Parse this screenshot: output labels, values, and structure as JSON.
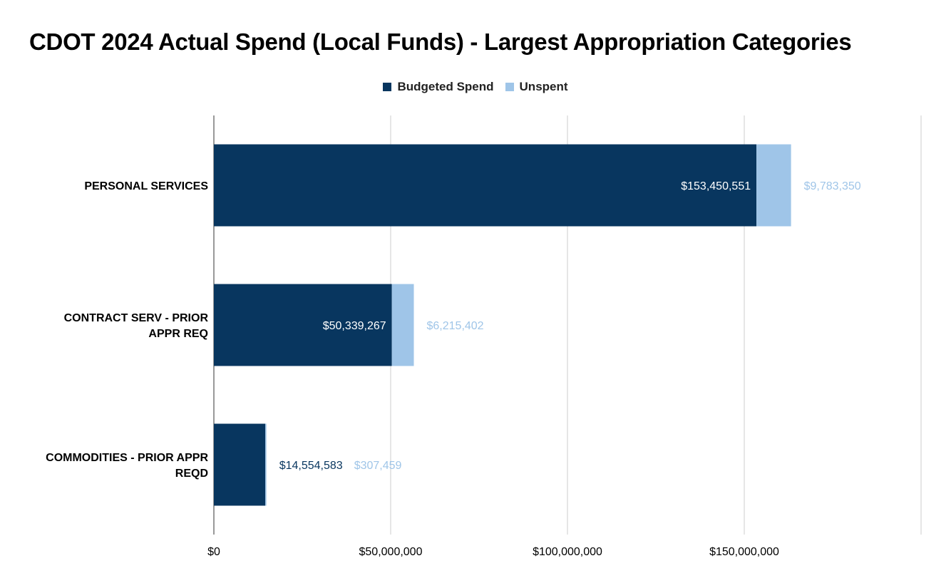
{
  "chart_data": {
    "type": "bar",
    "orientation": "horizontal",
    "stacked": true,
    "title": "CDOT 2024 Actual Spend (Local Funds) - Largest Appropriation Categories",
    "xlabel": "",
    "ylabel": "",
    "legend_position": "top",
    "grid": true,
    "xlim": [
      0,
      200000000
    ],
    "x_ticks": [
      0,
      50000000,
      100000000,
      150000000,
      200000000
    ],
    "x_tick_labels": [
      "$0",
      "$50,000,000",
      "$100,000,000",
      "$150,000,000",
      ""
    ],
    "categories": [
      [
        "PERSONAL SERVICES"
      ],
      [
        "CONTRACT SERV - PRIOR",
        "APPR REQ"
      ],
      [
        "COMMODITIES - PRIOR APPR",
        "REQD"
      ]
    ],
    "series": [
      {
        "name": "Budgeted Spend",
        "color": "#08365f",
        "values": [
          153450551,
          50339267,
          14554583
        ],
        "labels": [
          "$153,450,551",
          "$50,339,267",
          "$14,554,583"
        ]
      },
      {
        "name": "Unspent",
        "color": "#9fc5e8",
        "values": [
          9783350,
          6215402,
          307459
        ],
        "labels": [
          "$9,783,350",
          "$6,215,402",
          "$307,459"
        ]
      }
    ]
  }
}
